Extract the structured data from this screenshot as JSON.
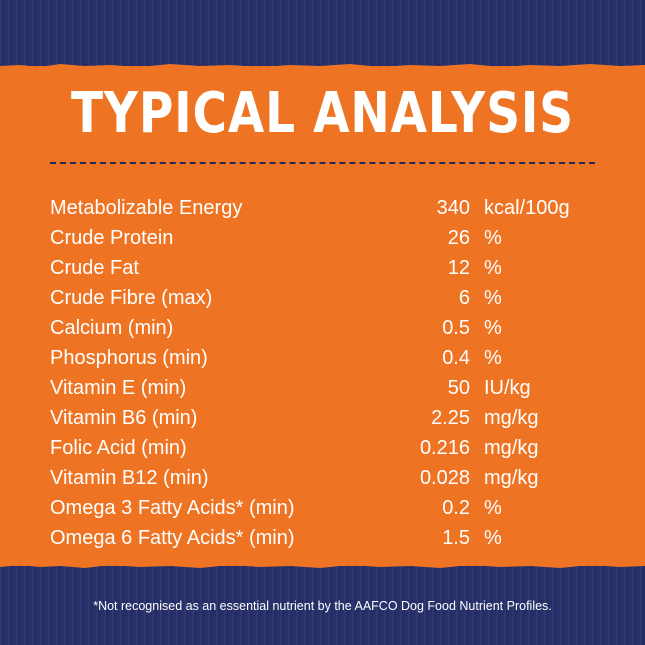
{
  "title": "TYPICAL ANALYSIS",
  "rows": [
    {
      "name": "Metabolizable Energy",
      "value": "340",
      "unit": "kcal/100g"
    },
    {
      "name": "Crude Protein",
      "value": "26",
      "unit": "%"
    },
    {
      "name": "Crude Fat",
      "value": "12",
      "unit": "%"
    },
    {
      "name": "Crude Fibre (max)",
      "value": "6",
      "unit": "%"
    },
    {
      "name": "Calcium (min)",
      "value": "0.5",
      "unit": "%"
    },
    {
      "name": "Phosphorus (min)",
      "value": "0.4",
      "unit": "%"
    },
    {
      "name": "Vitamin E (min)",
      "value": "50",
      "unit": "IU/kg"
    },
    {
      "name": "Vitamin B6 (min)",
      "value": "2.25",
      "unit": "mg/kg"
    },
    {
      "name": "Folic Acid (min)",
      "value": "0.216",
      "unit": "mg/kg"
    },
    {
      "name": "Vitamin B12 (min)",
      "value": "0.028",
      "unit": "mg/kg"
    },
    {
      "name": "Omega 3 Fatty Acids* (min)",
      "value": "0.2",
      "unit": "%"
    },
    {
      "name": "Omega 6 Fatty Acids* (min)",
      "value": "1.5",
      "unit": "%"
    }
  ],
  "footnote": "*Not recognised as an essential nutrient by the AAFCO Dog Food Nutrient Profiles.",
  "colors": {
    "background": "#27306a",
    "panel": "#ee7424",
    "divider": "#1f2a5a",
    "text": "#ffffff"
  }
}
